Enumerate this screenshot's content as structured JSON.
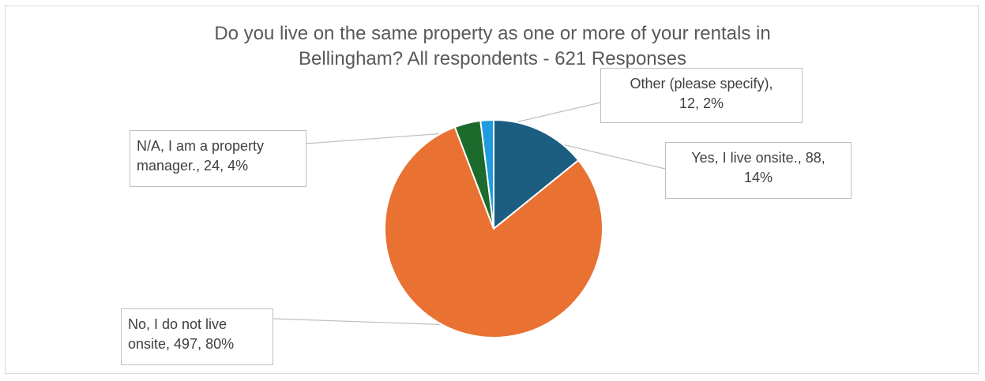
{
  "chart_data": {
    "type": "pie",
    "title_lines": [
      "Do you live on the same property as one or more of your rentals in",
      "Bellingham? All respondents - 621 Responses"
    ],
    "slices": [
      {
        "label_lines": [
          "Yes, I live onsite., 88,",
          "14%"
        ],
        "category": "Yes, I live onsite.",
        "value": 88,
        "percent": 14,
        "color": "#1b5e82"
      },
      {
        "label_lines": [
          "No, I do not live",
          "onsite, 497, 80%"
        ],
        "category": "No, I do not live onsite",
        "value": 497,
        "percent": 80,
        "color": "#e97132"
      },
      {
        "label_lines": [
          "N/A, I am a property",
          "manager., 24, 4%"
        ],
        "category": "N/A, I am a property manager.",
        "value": 24,
        "percent": 4,
        "color": "#1c6b2c"
      },
      {
        "label_lines": [
          "Other (please specify),",
          "12, 2%"
        ],
        "category": "Other (please specify)",
        "value": 12,
        "percent": 2,
        "color": "#1f9be0"
      }
    ]
  }
}
